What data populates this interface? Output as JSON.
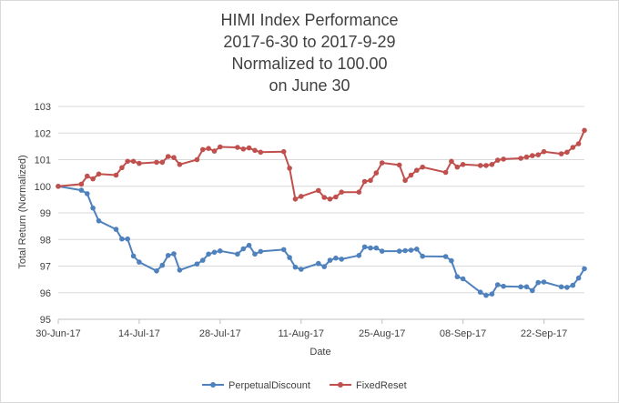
{
  "chart_data": {
    "type": "line",
    "title": [
      "HIMI Index Performance",
      "2017-6-30 to 2017-9-29",
      "Normalized to 100.00",
      "on June 30"
    ],
    "xlabel": "Date",
    "ylabel": "Total Return (Normalized)",
    "ylim": [
      95,
      103
    ],
    "yticks": [
      95,
      96,
      97,
      98,
      99,
      100,
      101,
      102,
      103
    ],
    "xlim": [
      "2017-06-30",
      "2017-09-29"
    ],
    "xticks": [
      "2017-06-30",
      "2017-07-14",
      "2017-07-28",
      "2017-08-11",
      "2017-08-25",
      "2017-09-08",
      "2017-09-22"
    ],
    "xtick_labels": [
      "30-Jun-17",
      "14-Jul-17",
      "28-Jul-17",
      "11-Aug-17",
      "25-Aug-17",
      "08-Sep-17",
      "22-Sep-17"
    ],
    "grid": "horizontal",
    "legend_position": "bottom",
    "x": [
      "2017-06-30",
      "2017-07-04",
      "2017-07-05",
      "2017-07-06",
      "2017-07-07",
      "2017-07-10",
      "2017-07-11",
      "2017-07-12",
      "2017-07-13",
      "2017-07-14",
      "2017-07-17",
      "2017-07-18",
      "2017-07-19",
      "2017-07-20",
      "2017-07-21",
      "2017-07-24",
      "2017-07-25",
      "2017-07-26",
      "2017-07-27",
      "2017-07-28",
      "2017-07-31",
      "2017-08-01",
      "2017-08-02",
      "2017-08-03",
      "2017-08-04",
      "2017-08-08",
      "2017-08-09",
      "2017-08-10",
      "2017-08-11",
      "2017-08-14",
      "2017-08-15",
      "2017-08-16",
      "2017-08-17",
      "2017-08-18",
      "2017-08-21",
      "2017-08-22",
      "2017-08-23",
      "2017-08-24",
      "2017-08-25",
      "2017-08-28",
      "2017-08-29",
      "2017-08-30",
      "2017-08-31",
      "2017-09-01",
      "2017-09-05",
      "2017-09-06",
      "2017-09-07",
      "2017-09-08",
      "2017-09-11",
      "2017-09-12",
      "2017-09-13",
      "2017-09-14",
      "2017-09-15",
      "2017-09-18",
      "2017-09-19",
      "2017-09-20",
      "2017-09-21",
      "2017-09-22",
      "2017-09-25",
      "2017-09-26",
      "2017-09-27",
      "2017-09-28",
      "2017-09-29"
    ],
    "series": [
      {
        "name": "PerpetualDiscount",
        "color": "#4f81bd",
        "values": [
          100.0,
          99.85,
          99.72,
          99.18,
          98.7,
          98.38,
          98.02,
          98.02,
          97.38,
          97.15,
          96.82,
          97.03,
          97.4,
          97.46,
          96.85,
          97.08,
          97.22,
          97.45,
          97.52,
          97.57,
          97.45,
          97.65,
          97.78,
          97.45,
          97.55,
          97.62,
          97.32,
          96.96,
          96.88,
          97.1,
          96.98,
          97.22,
          97.3,
          97.26,
          97.4,
          97.72,
          97.68,
          97.68,
          97.56,
          97.56,
          97.58,
          97.6,
          97.64,
          97.37,
          97.36,
          97.2,
          96.6,
          96.52,
          96.02,
          95.9,
          95.95,
          96.3,
          96.24,
          96.22,
          96.22,
          96.08,
          96.38,
          96.4,
          96.22,
          96.2,
          96.28,
          96.55,
          96.9
        ]
      },
      {
        "name": "FixedReset",
        "color": "#c0504d",
        "values": [
          100.0,
          100.08,
          100.38,
          100.28,
          100.46,
          100.42,
          100.7,
          100.94,
          100.94,
          100.86,
          100.9,
          100.9,
          101.12,
          101.08,
          100.82,
          101.0,
          101.38,
          101.42,
          101.32,
          101.48,
          101.46,
          101.4,
          101.44,
          101.35,
          101.28,
          101.3,
          100.68,
          99.52,
          99.62,
          99.84,
          99.58,
          99.52,
          99.6,
          99.78,
          99.78,
          100.18,
          100.22,
          100.5,
          100.88,
          100.8,
          100.22,
          100.42,
          100.6,
          100.72,
          100.52,
          100.94,
          100.72,
          100.82,
          100.78,
          100.78,
          100.82,
          100.98,
          101.02,
          101.05,
          101.1,
          101.15,
          101.18,
          101.3,
          101.22,
          101.28,
          101.46,
          101.6,
          102.1
        ]
      }
    ]
  }
}
